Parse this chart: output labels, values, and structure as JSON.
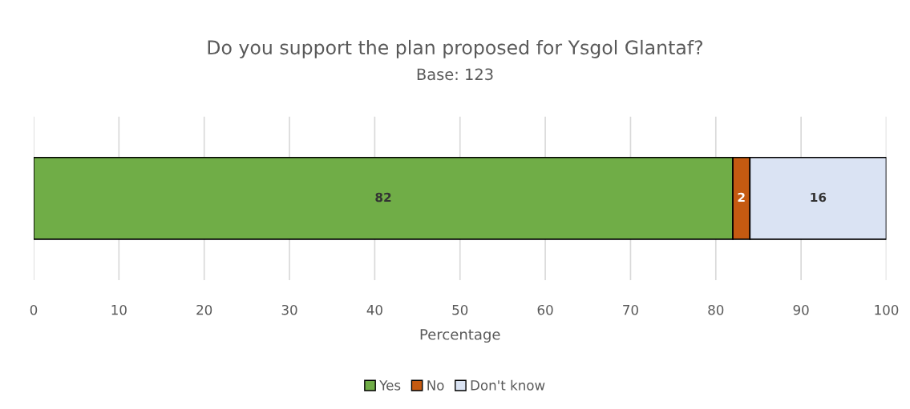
{
  "chart_data": {
    "type": "bar",
    "orientation": "horizontal",
    "stacked": true,
    "title": "Do you support the plan proposed for Ysgol Glantaf?",
    "subtitle": "Base: 123",
    "xlabel": "Percentage",
    "categories": [
      null
    ],
    "series": [
      {
        "name": "Yes",
        "color": "#70ad47",
        "values": [
          82
        ]
      },
      {
        "name": "No",
        "color": "#c55a11",
        "values": [
          2
        ]
      },
      {
        "name": "Don't know",
        "color": "#dae3f3",
        "values": [
          16
        ]
      }
    ],
    "xlim": [
      0,
      100
    ],
    "xticks": [
      0,
      10,
      20,
      30,
      40,
      50,
      60,
      70,
      80,
      90,
      100
    ],
    "grid": "x",
    "legend": "bottom",
    "data_labels": true,
    "tick_labels": "x"
  }
}
